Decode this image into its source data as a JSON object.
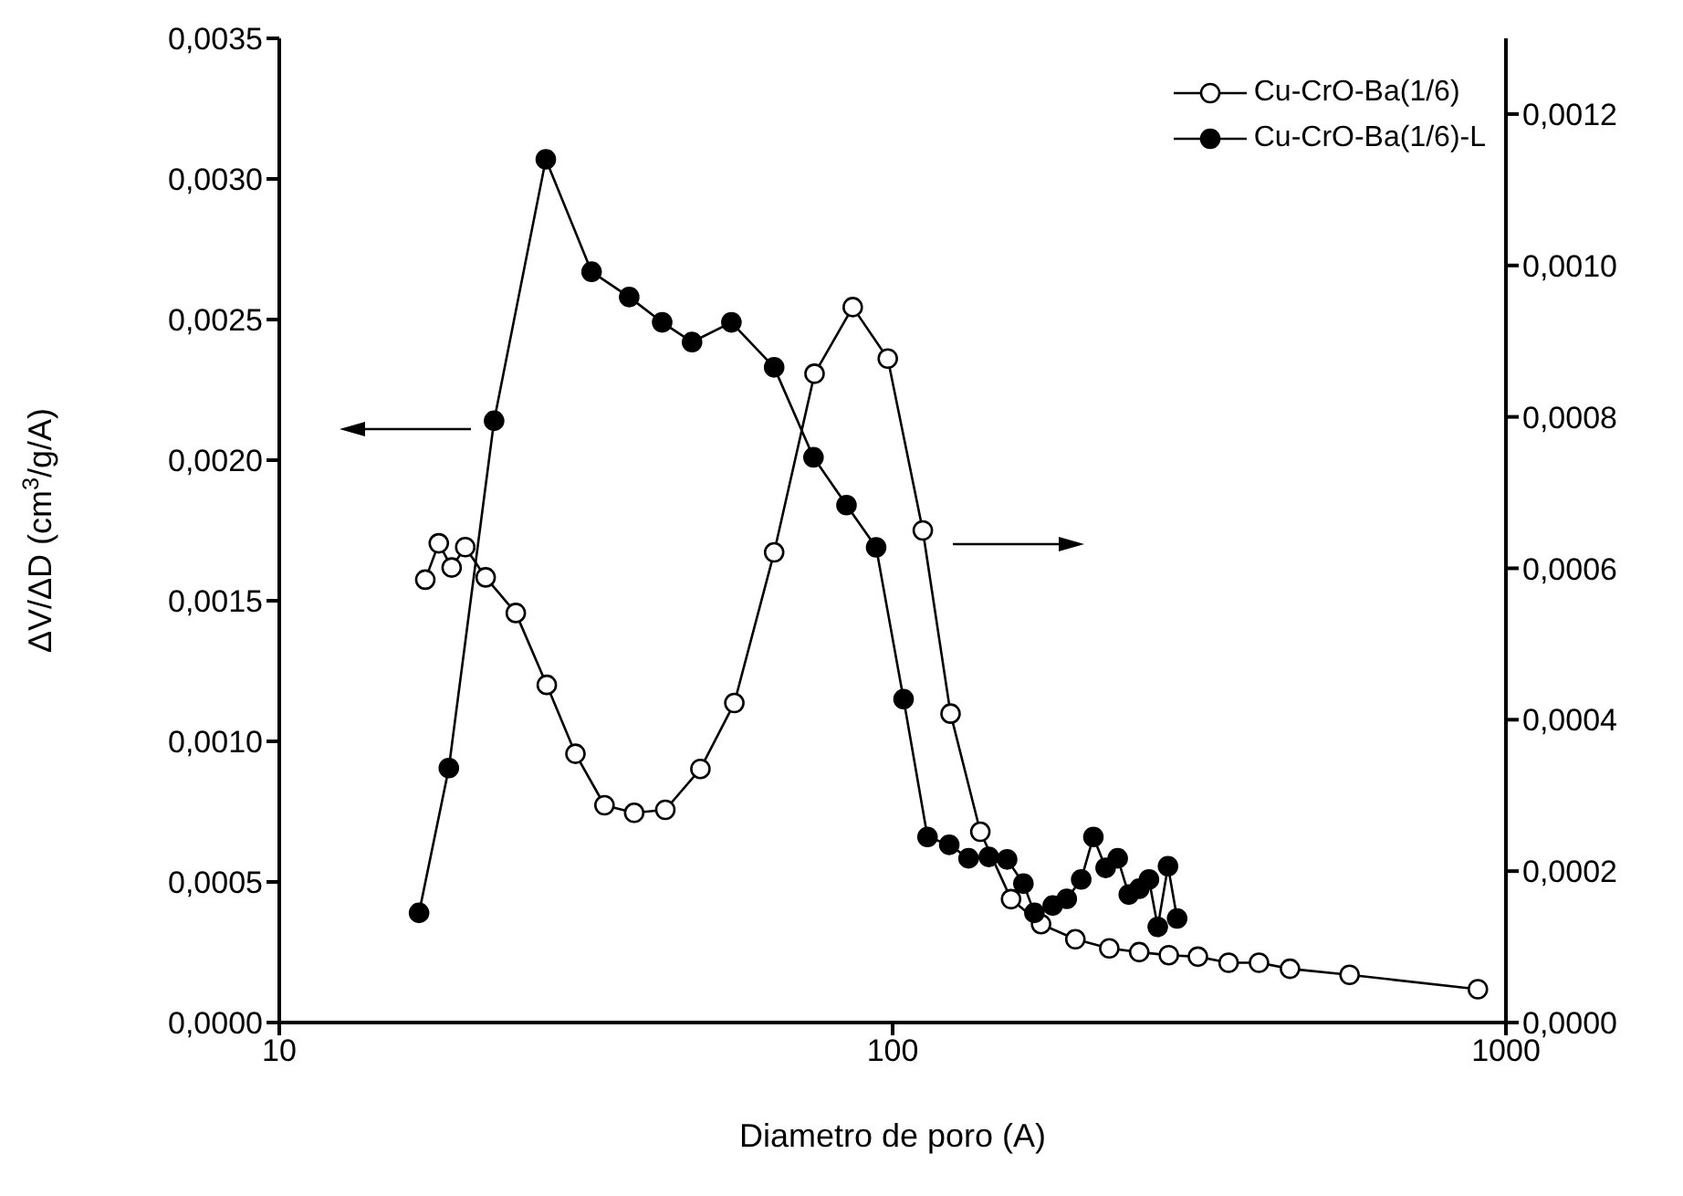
{
  "chart_data": {
    "type": "line",
    "xlabel": "Diametro de poro (A)",
    "ylabel": "ΔV/ΔD (cm$^{3}$/g/A)",
    "log": "x",
    "xlim": [
      10,
      1000
    ],
    "xticks": [
      10,
      100,
      1000
    ],
    "ylim": [
      0,
      0.0035
    ],
    "yticks": [
      {
        "value": 0,
        "label": "0,0000"
      },
      {
        "value": 0.0005,
        "label": "0,0005"
      },
      {
        "value": 0.001,
        "label": "0,0010"
      },
      {
        "value": 0.0015,
        "label": "0,0015"
      },
      {
        "value": 0.002,
        "label": "0,0020"
      },
      {
        "value": 0.0025,
        "label": "0,0025"
      },
      {
        "value": 0.003,
        "label": "0,0030"
      },
      {
        "value": 0.0035,
        "label": "0,0035"
      }
    ],
    "y2lim": [
      0,
      0.0013
    ],
    "y2ticks": [
      {
        "value": 0,
        "label": "0,0000"
      },
      {
        "value": 0.0002,
        "label": "0,0002"
      },
      {
        "value": 0.0004,
        "label": "0,0004"
      },
      {
        "value": 0.0006,
        "label": "0,0006"
      },
      {
        "value": 0.0008,
        "label": "0,0008"
      },
      {
        "value": 0.001,
        "label": "0,0010"
      },
      {
        "value": 0.0012,
        "label": "0,0012"
      }
    ],
    "grid": false,
    "legend": "top right",
    "marker": "circle",
    "line_style": "solid",
    "series": [
      {
        "name": "Cu-CrO-Ba(1/6)",
        "color": "#000000",
        "axis": "y2",
        "x": [
          17.3,
          18.2,
          19.1,
          20.1,
          21.7,
          24.3,
          27.3,
          30.4,
          33.9,
          37.9,
          42.6,
          48.6,
          55.2,
          64.1,
          74.6,
          86.1,
          98.2,
          112,
          124.3,
          139,
          156,
          174.6,
          198.6,
          225.6,
          252.4,
          282,
          314.6,
          353,
          395.7,
          444.5,
          556,
          900
        ],
        "values": [
          0.000585,
          0.000633,
          0.000601,
          0.000628,
          0.000588,
          0.000541,
          0.000446,
          0.000355,
          0.000287,
          0.000277,
          0.000281,
          0.000335,
          0.000422,
          0.000621,
          0.000857,
          0.000945,
          0.000877,
          0.00065,
          0.000408,
          0.000252,
          0.000163,
          0.00013,
          0.00011,
          9.8e-05,
          9.3e-05,
          8.9e-05,
          8.7e-05,
          7.9e-05,
          7.9e-05,
          7.1e-05,
          6.3e-05,
          4.4e-05
        ]
      },
      {
        "name": "Cu-CrO-Ba(1/6)-L",
        "color": "#000000",
        "x": [
          16.9,
          18.9,
          22.4,
          27.2,
          32.3,
          37.2,
          42.1,
          47.1,
          54.6,
          64.1,
          74.3,
          84.1,
          94,
          104.2,
          114,
          123.7,
          133,
          143.5,
          153.7,
          163.4,
          170.3,
          182.4,
          192.3,
          203,
          212.5,
          222.5,
          232.8,
          242.7,
          252.4,
          261.8,
          270.6,
          281.2,
          291
        ],
        "values": [
          0.00039,
          0.000905,
          0.00214,
          0.00307,
          0.00267,
          0.00258,
          0.00249,
          0.00242,
          0.00249,
          0.00233,
          0.00201,
          0.00184,
          0.00169,
          0.00115,
          0.00066,
          0.000632,
          0.000584,
          0.000589,
          0.00058,
          0.000494,
          0.00039,
          0.000416,
          0.00044,
          0.000509,
          0.00066,
          0.00055,
          0.000584,
          0.000455,
          0.000476,
          0.000509,
          0.00034,
          0.000556,
          0.00037
        ]
      }
    ]
  }
}
